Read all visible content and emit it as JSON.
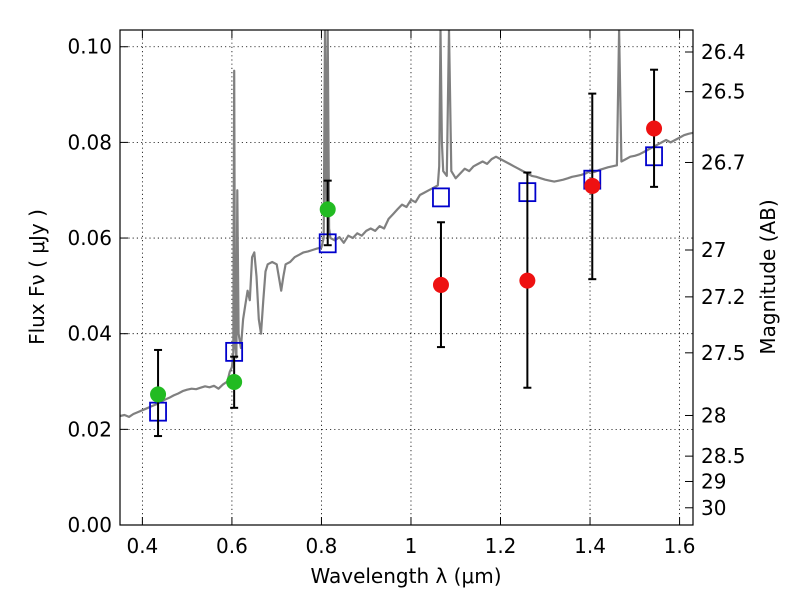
{
  "chart_data": {
    "type": "scatter",
    "xlabel": "Wavelength  λ (μm)",
    "ylabel": "Flux  Fν  ( μJy )",
    "right_ylabel": "Magnitude (AB)",
    "xlim": [
      0.35,
      1.63
    ],
    "ylim": [
      0.0,
      0.1035
    ],
    "grid": true,
    "x_ticks": [
      0.4,
      0.6,
      0.8,
      1.0,
      1.2,
      1.4,
      1.6
    ],
    "x_tick_labels": [
      "0.4",
      "0.6",
      "0.8",
      "1",
      "1.2",
      "1.4",
      "1.6"
    ],
    "y_ticks": [
      0.0,
      0.02,
      0.04,
      0.06,
      0.08,
      0.1
    ],
    "y_tick_labels": [
      "0.00",
      "0.02",
      "0.04",
      "0.06",
      "0.08",
      "0.10"
    ],
    "right_ticks": [
      {
        "flux": 0.0989,
        "label": "26.4"
      },
      {
        "flux": 0.0906,
        "label": "26.5"
      },
      {
        "flux": 0.0758,
        "label": "26.7"
      },
      {
        "flux": 0.0575,
        "label": "27"
      },
      {
        "flux": 0.0477,
        "label": "27.2"
      },
      {
        "flux": 0.036,
        "label": "27.5"
      },
      {
        "flux": 0.0229,
        "label": "28"
      },
      {
        "flux": 0.0144,
        "label": "28.5"
      },
      {
        "flux": 0.0091,
        "label": "29"
      },
      {
        "flux": 0.0036,
        "label": "30"
      }
    ],
    "colors": {
      "model": "#808080",
      "model_photometry": "#0000cc",
      "green_points": "#22bb22",
      "red_points": "#ee1111",
      "error_bars": "#000000"
    },
    "series": [
      {
        "kind": "line",
        "points": [
          [
            0.35,
            0.0228
          ],
          [
            0.36,
            0.023
          ],
          [
            0.37,
            0.0226
          ],
          [
            0.38,
            0.0232
          ],
          [
            0.39,
            0.0236
          ],
          [
            0.4,
            0.024
          ],
          [
            0.41,
            0.0244
          ],
          [
            0.42,
            0.0248
          ],
          [
            0.43,
            0.0252
          ],
          [
            0.44,
            0.0257
          ],
          [
            0.45,
            0.0262
          ],
          [
            0.46,
            0.0266
          ],
          [
            0.47,
            0.0271
          ],
          [
            0.48,
            0.0275
          ],
          [
            0.49,
            0.028
          ],
          [
            0.5,
            0.0283
          ],
          [
            0.51,
            0.0285
          ],
          [
            0.52,
            0.0284
          ],
          [
            0.53,
            0.0287
          ],
          [
            0.54,
            0.029
          ],
          [
            0.55,
            0.0288
          ],
          [
            0.56,
            0.0291
          ],
          [
            0.57,
            0.0285
          ],
          [
            0.58,
            0.0294
          ],
          [
            0.59,
            0.03
          ],
          [
            0.595,
            0.032
          ],
          [
            0.6,
            0.033
          ],
          [
            0.603,
            0.036
          ],
          [
            0.605,
            0.095
          ],
          [
            0.607,
            0.038
          ],
          [
            0.61,
            0.035
          ],
          [
            0.612,
            0.07
          ],
          [
            0.615,
            0.04
          ],
          [
            0.62,
            0.037
          ],
          [
            0.625,
            0.043
          ],
          [
            0.63,
            0.046
          ],
          [
            0.635,
            0.049
          ],
          [
            0.64,
            0.047
          ],
          [
            0.645,
            0.056
          ],
          [
            0.65,
            0.057
          ],
          [
            0.655,
            0.052
          ],
          [
            0.66,
            0.043
          ],
          [
            0.665,
            0.04
          ],
          [
            0.67,
            0.047
          ],
          [
            0.675,
            0.053
          ],
          [
            0.68,
            0.0545
          ],
          [
            0.69,
            0.055
          ],
          [
            0.7,
            0.0545
          ],
          [
            0.71,
            0.049
          ],
          [
            0.715,
            0.052
          ],
          [
            0.72,
            0.0545
          ],
          [
            0.73,
            0.055
          ],
          [
            0.74,
            0.056
          ],
          [
            0.75,
            0.0565
          ],
          [
            0.76,
            0.057
          ],
          [
            0.77,
            0.0572
          ],
          [
            0.78,
            0.0575
          ],
          [
            0.79,
            0.0578
          ],
          [
            0.8,
            0.058
          ],
          [
            0.805,
            0.06
          ],
          [
            0.808,
            0.1035
          ],
          [
            0.811,
            0.065
          ],
          [
            0.814,
            0.1035
          ],
          [
            0.817,
            0.062
          ],
          [
            0.82,
            0.06
          ],
          [
            0.83,
            0.0595
          ],
          [
            0.84,
            0.0602
          ],
          [
            0.85,
            0.059
          ],
          [
            0.86,
            0.0605
          ],
          [
            0.87,
            0.06
          ],
          [
            0.88,
            0.061
          ],
          [
            0.89,
            0.0605
          ],
          [
            0.9,
            0.0615
          ],
          [
            0.91,
            0.062
          ],
          [
            0.92,
            0.0615
          ],
          [
            0.93,
            0.0625
          ],
          [
            0.94,
            0.062
          ],
          [
            0.95,
            0.064
          ],
          [
            0.96,
            0.065
          ],
          [
            0.97,
            0.066
          ],
          [
            0.98,
            0.067
          ],
          [
            0.99,
            0.0665
          ],
          [
            1.0,
            0.068
          ],
          [
            1.01,
            0.0675
          ],
          [
            1.02,
            0.069
          ],
          [
            1.03,
            0.0695
          ],
          [
            1.04,
            0.07
          ],
          [
            1.05,
            0.0705
          ],
          [
            1.06,
            0.071
          ],
          [
            1.063,
            0.075
          ],
          [
            1.066,
            0.1035
          ],
          [
            1.069,
            0.08
          ],
          [
            1.072,
            0.074
          ],
          [
            1.08,
            0.073
          ],
          [
            1.085,
            0.1035
          ],
          [
            1.09,
            0.074
          ],
          [
            1.1,
            0.0725
          ],
          [
            1.11,
            0.0735
          ],
          [
            1.12,
            0.0745
          ],
          [
            1.13,
            0.074
          ],
          [
            1.14,
            0.075
          ],
          [
            1.15,
            0.0755
          ],
          [
            1.16,
            0.076
          ],
          [
            1.17,
            0.0755
          ],
          [
            1.18,
            0.0765
          ],
          [
            1.19,
            0.077
          ],
          [
            1.2,
            0.0765
          ],
          [
            1.21,
            0.076
          ],
          [
            1.22,
            0.0755
          ],
          [
            1.23,
            0.075
          ],
          [
            1.24,
            0.0745
          ],
          [
            1.25,
            0.074
          ],
          [
            1.26,
            0.0735
          ],
          [
            1.27,
            0.073
          ],
          [
            1.28,
            0.0728
          ],
          [
            1.29,
            0.0725
          ],
          [
            1.3,
            0.0722
          ],
          [
            1.31,
            0.072
          ],
          [
            1.32,
            0.0718
          ],
          [
            1.33,
            0.072
          ],
          [
            1.34,
            0.0722
          ],
          [
            1.35,
            0.0725
          ],
          [
            1.36,
            0.0728
          ],
          [
            1.37,
            0.073
          ],
          [
            1.38,
            0.0732
          ],
          [
            1.39,
            0.0735
          ],
          [
            1.4,
            0.074
          ],
          [
            1.41,
            0.0738
          ],
          [
            1.42,
            0.0742
          ],
          [
            1.43,
            0.0745
          ],
          [
            1.44,
            0.0748
          ],
          [
            1.45,
            0.075
          ],
          [
            1.46,
            0.0752
          ],
          [
            1.465,
            0.1035
          ],
          [
            1.47,
            0.076
          ],
          [
            1.48,
            0.0765
          ],
          [
            1.49,
            0.077
          ],
          [
            1.5,
            0.0772
          ],
          [
            1.51,
            0.0775
          ],
          [
            1.52,
            0.078
          ],
          [
            1.53,
            0.0785
          ],
          [
            1.54,
            0.079
          ],
          [
            1.55,
            0.0795
          ],
          [
            1.56,
            0.08
          ],
          [
            1.57,
            0.0805
          ],
          [
            1.58,
            0.08
          ],
          [
            1.59,
            0.0805
          ],
          [
            1.6,
            0.081
          ],
          [
            1.61,
            0.0815
          ],
          [
            1.62,
            0.0818
          ],
          [
            1.63,
            0.082
          ]
        ]
      },
      {
        "kind": "squares",
        "points": [
          [
            0.435,
            0.0237
          ],
          [
            0.605,
            0.0362
          ],
          [
            0.814,
            0.0589
          ],
          [
            1.067,
            0.0685
          ],
          [
            1.26,
            0.0696
          ],
          [
            1.405,
            0.0722
          ],
          [
            1.543,
            0.0771
          ]
        ]
      },
      {
        "kind": "points",
        "color_key": "green_points",
        "points": [
          {
            "x": 0.435,
            "y": 0.0273,
            "lo": 0.0186,
            "hi": 0.0366
          },
          {
            "x": 0.605,
            "y": 0.0299,
            "lo": 0.0245,
            "hi": 0.0352
          },
          {
            "x": 0.814,
            "y": 0.066,
            "lo": 0.0585,
            "hi": 0.072
          }
        ]
      },
      {
        "kind": "points",
        "color_key": "red_points",
        "points": [
          {
            "x": 1.067,
            "y": 0.0502,
            "lo": 0.0372,
            "hi": 0.0633
          },
          {
            "x": 1.26,
            "y": 0.0511,
            "lo": 0.0287,
            "hi": 0.0737
          },
          {
            "x": 1.405,
            "y": 0.0709,
            "lo": 0.0514,
            "hi": 0.0902
          },
          {
            "x": 1.543,
            "y": 0.0829,
            "lo": 0.0707,
            "hi": 0.0952
          }
        ]
      }
    ]
  }
}
